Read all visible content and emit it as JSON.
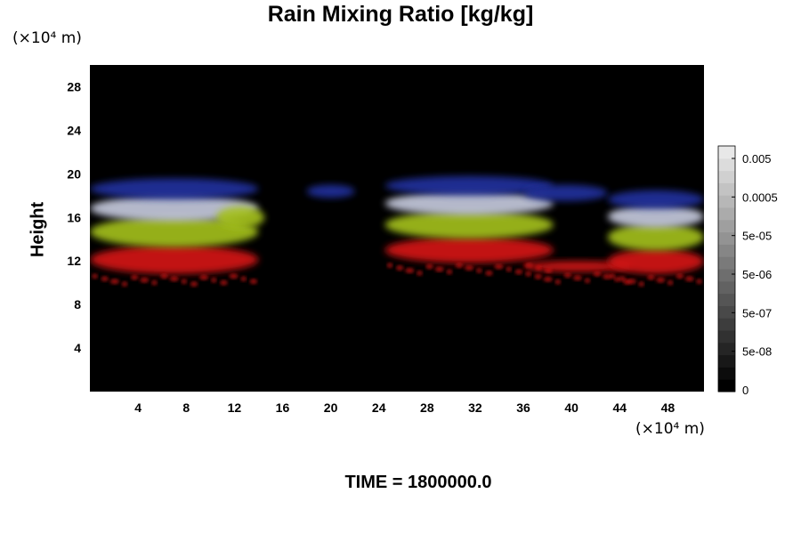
{
  "title": "Rain Mixing Ratio [kg/kg]",
  "time_label": "TIME = 1800000.0",
  "chart_data": {
    "type": "heatmap",
    "title": "Rain Mixing Ratio [kg/kg]",
    "xlabel": "",
    "ylabel": "Height",
    "x_unit": "(×10⁴ m)",
    "y_unit": "(×10⁴ m)",
    "xlim": [
      0,
      51
    ],
    "ylim": [
      0,
      30
    ],
    "x_ticks": [
      4,
      8,
      12,
      16,
      20,
      24,
      28,
      32,
      36,
      40,
      44,
      48
    ],
    "y_ticks": [
      4,
      8,
      12,
      16,
      20,
      24,
      28
    ],
    "background_color": "#000000",
    "colorbar": {
      "ticks": [
        "0",
        "5e-08",
        "5e-07",
        "5e-06",
        "5e-05",
        "0.0005",
        "0.005"
      ],
      "levels": 20,
      "colors": [
        "#000000",
        "#ffffff"
      ]
    },
    "layer_colors": {
      "low": "#d81818",
      "middle": "#a6c21e",
      "upper": "#c8cce0",
      "top": "#2030a0"
    },
    "cloud_regions": [
      {
        "x_range": [
          0,
          14
        ],
        "layers": [
          "low",
          "middle",
          "upper",
          "top"
        ],
        "height_range": [
          10.8,
          19.6
        ]
      },
      {
        "x_range": [
          10.5,
          14.5
        ],
        "layers": [
          "middle"
        ],
        "height_range": [
          15,
          17
        ]
      },
      {
        "x_range": [
          18,
          22
        ],
        "layers": [
          "top"
        ],
        "height_range": [
          17.8,
          19
        ]
      },
      {
        "x_range": [
          24.5,
          38.5
        ],
        "layers": [
          "low",
          "middle",
          "upper",
          "top"
        ],
        "height_range": [
          11.8,
          19.8
        ]
      },
      {
        "x_range": [
          36,
          43
        ],
        "layers": [
          "top"
        ],
        "height_range": [
          17.5,
          19
        ]
      },
      {
        "x_range": [
          36,
          45
        ],
        "layers": [
          "low"
        ],
        "height_range": [
          11,
          12
        ]
      },
      {
        "x_range": [
          43,
          51
        ],
        "layers": [
          "low",
          "middle",
          "upper",
          "top"
        ],
        "height_range": [
          10.8,
          18.5
        ]
      }
    ]
  }
}
